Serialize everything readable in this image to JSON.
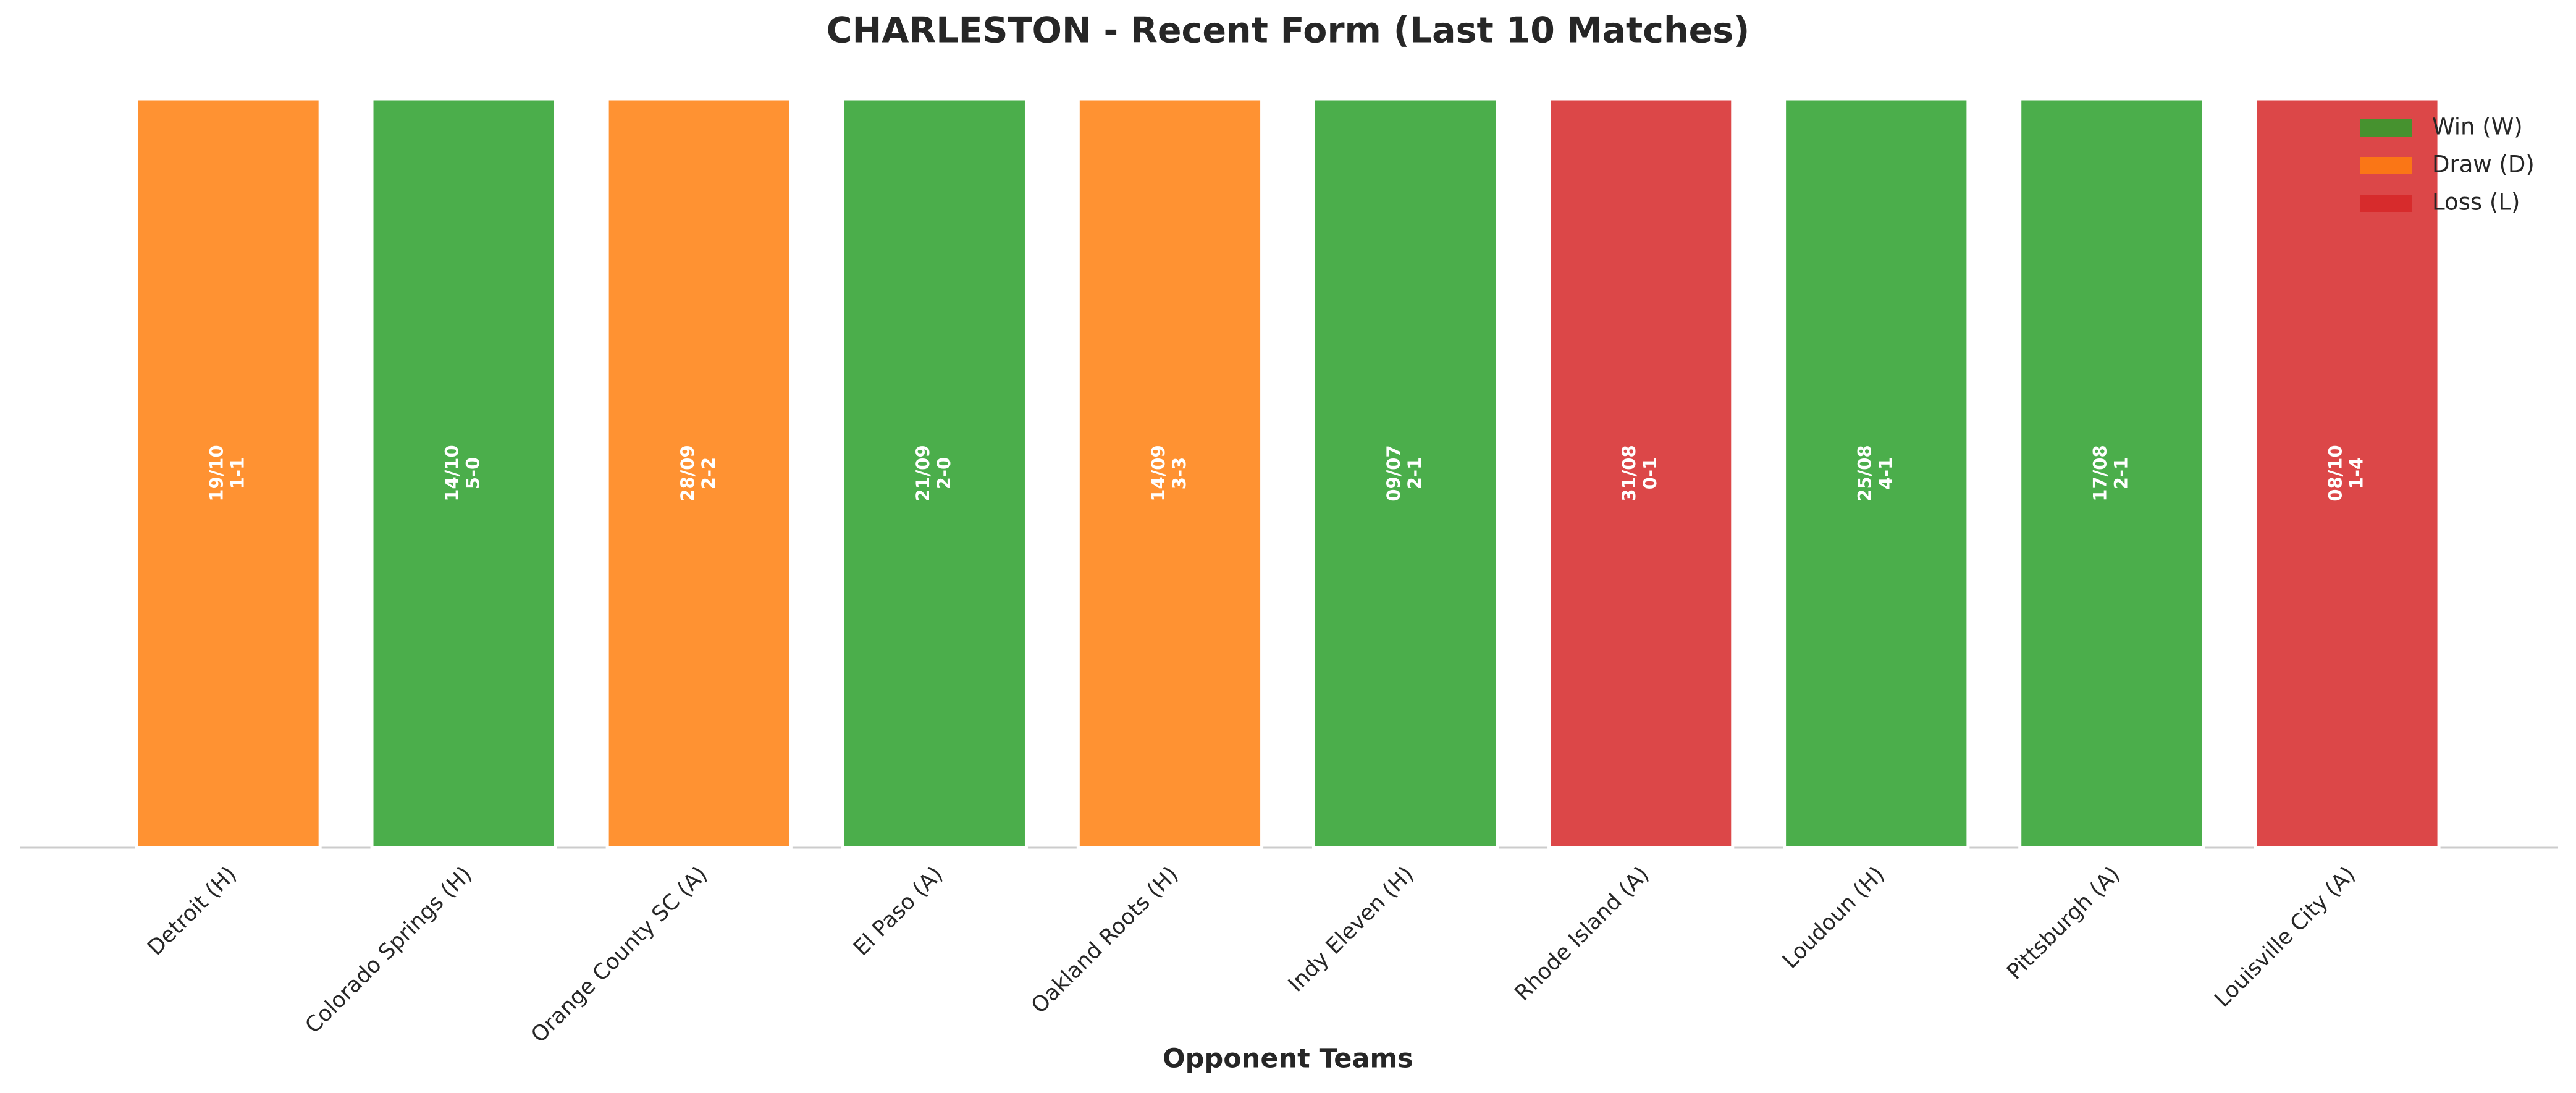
{
  "chart_data": {
    "type": "bar",
    "title": "CHARLESTON - Recent Form (Last 10 Matches)",
    "xlabel": "Opponent Teams",
    "categories": [
      "Detroit (H)",
      "Colorado Springs (H)",
      "Orange County SC (A)",
      "El Paso (A)",
      "Oakland Roots (H)",
      "Indy Eleven (H)",
      "Rhode Island (A)",
      "Loudoun (H)",
      "Pittsburgh (A)",
      "Louisville City (A)"
    ],
    "values": [
      1,
      1,
      1,
      1,
      1,
      1,
      1,
      1,
      1,
      1
    ],
    "dates": [
      "19/10",
      "14/10",
      "28/09",
      "21/09",
      "14/09",
      "09/07",
      "31/08",
      "25/08",
      "17/08",
      "08/10"
    ],
    "scores": [
      "1-1",
      "5-0",
      "2-2",
      "2-0",
      "3-3",
      "2-1",
      "0-1",
      "4-1",
      "2-1",
      "1-4"
    ],
    "colors": [
      "#ff7f0e",
      "#2ca02c",
      "#ff7f0e",
      "#2ca02c",
      "#ff7f0e",
      "#2ca02c",
      "#d62728",
      "#2ca02c",
      "#2ca02c",
      "#d62728"
    ],
    "ylim": [
      0,
      1
    ],
    "legend": {
      "position": "upper right",
      "entries": [
        {
          "name": "Win (W)",
          "color": "#2ca02c"
        },
        {
          "name": "Draw (D)",
          "color": "#ff7f0e"
        },
        {
          "name": "Loss (L)",
          "color": "#d62728"
        }
      ]
    }
  }
}
